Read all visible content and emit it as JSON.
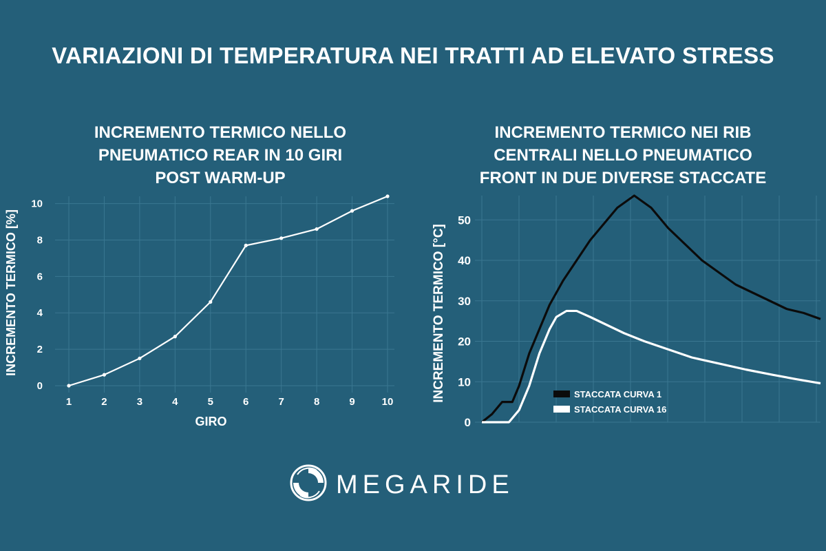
{
  "title": "VARIAZIONI DI TEMPERATURA NEI TRATTI AD ELEVATO STRESS",
  "brand": {
    "name": "MEGARIDE",
    "logo_icon": "megaride-swirl-icon"
  },
  "colors": {
    "background": "#245f79",
    "line_white": "#ffffff",
    "line_black": "#0b0b0b",
    "grid": "#3a7791"
  },
  "chart_data": [
    {
      "type": "line",
      "title_lines": [
        "INCREMENTO TERMICO NELLO",
        "PNEUMATICO REAR IN 10 GIRI",
        "POST WARM-UP"
      ],
      "xlabel": "GIRO",
      "ylabel": "INCREMENTO TERMICO [%]",
      "x": [
        1,
        2,
        3,
        4,
        5,
        6,
        7,
        8,
        9,
        10
      ],
      "xticks": [
        "1",
        "2",
        "3",
        "4",
        "5",
        "6",
        "7",
        "8",
        "9",
        "10"
      ],
      "yticks": [
        "0",
        "2",
        "4",
        "6",
        "8",
        "10"
      ],
      "xlim": [
        1,
        10
      ],
      "ylim": [
        0,
        10.4
      ],
      "grid": true,
      "series": [
        {
          "values": [
            0,
            0.6,
            1.5,
            2.7,
            4.6,
            7.7,
            8.1,
            8.6,
            9.6,
            10.4
          ]
        }
      ]
    },
    {
      "type": "line",
      "title_lines": [
        "INCREMENTO TERMICO NEI RIB",
        "CENTRALI NELLO PNEUMATICO",
        "FRONT IN DUE DIVERSE STACCATE"
      ],
      "xlabel": "",
      "ylabel": "INCREMENTO TERMICO [°C]",
      "yticks": [
        "0",
        "10",
        "20",
        "30",
        "40",
        "50"
      ],
      "ylim": [
        0,
        56
      ],
      "grid": true,
      "legend_position": "inside-left",
      "series": [
        {
          "name": "STACCATA CURVA 1",
          "color": "#0b0b0b",
          "x": [
            0,
            3,
            6,
            9,
            11,
            14,
            17,
            20,
            24,
            28,
            32,
            36,
            40,
            45,
            50,
            55,
            60,
            65,
            70,
            75,
            80,
            85,
            90,
            95,
            100
          ],
          "values": [
            0,
            2,
            5,
            5,
            9,
            17,
            23,
            29,
            35,
            40,
            45,
            49,
            53,
            56,
            53,
            48,
            44,
            40,
            37,
            34,
            32,
            30,
            28,
            27,
            25.5
          ]
        },
        {
          "name": "STACCATA CURVA 16",
          "color": "#ffffff",
          "x": [
            0,
            5,
            8,
            11,
            14,
            17,
            20,
            22,
            25,
            28,
            32,
            37,
            42,
            48,
            55,
            62,
            70,
            78,
            86,
            93,
            100
          ],
          "values": [
            0,
            0,
            0,
            3,
            9,
            17,
            23,
            26,
            27.5,
            27.5,
            26,
            24,
            22,
            20,
            18,
            16,
            14.5,
            13,
            11.7,
            10.6,
            9.6
          ]
        }
      ]
    }
  ]
}
